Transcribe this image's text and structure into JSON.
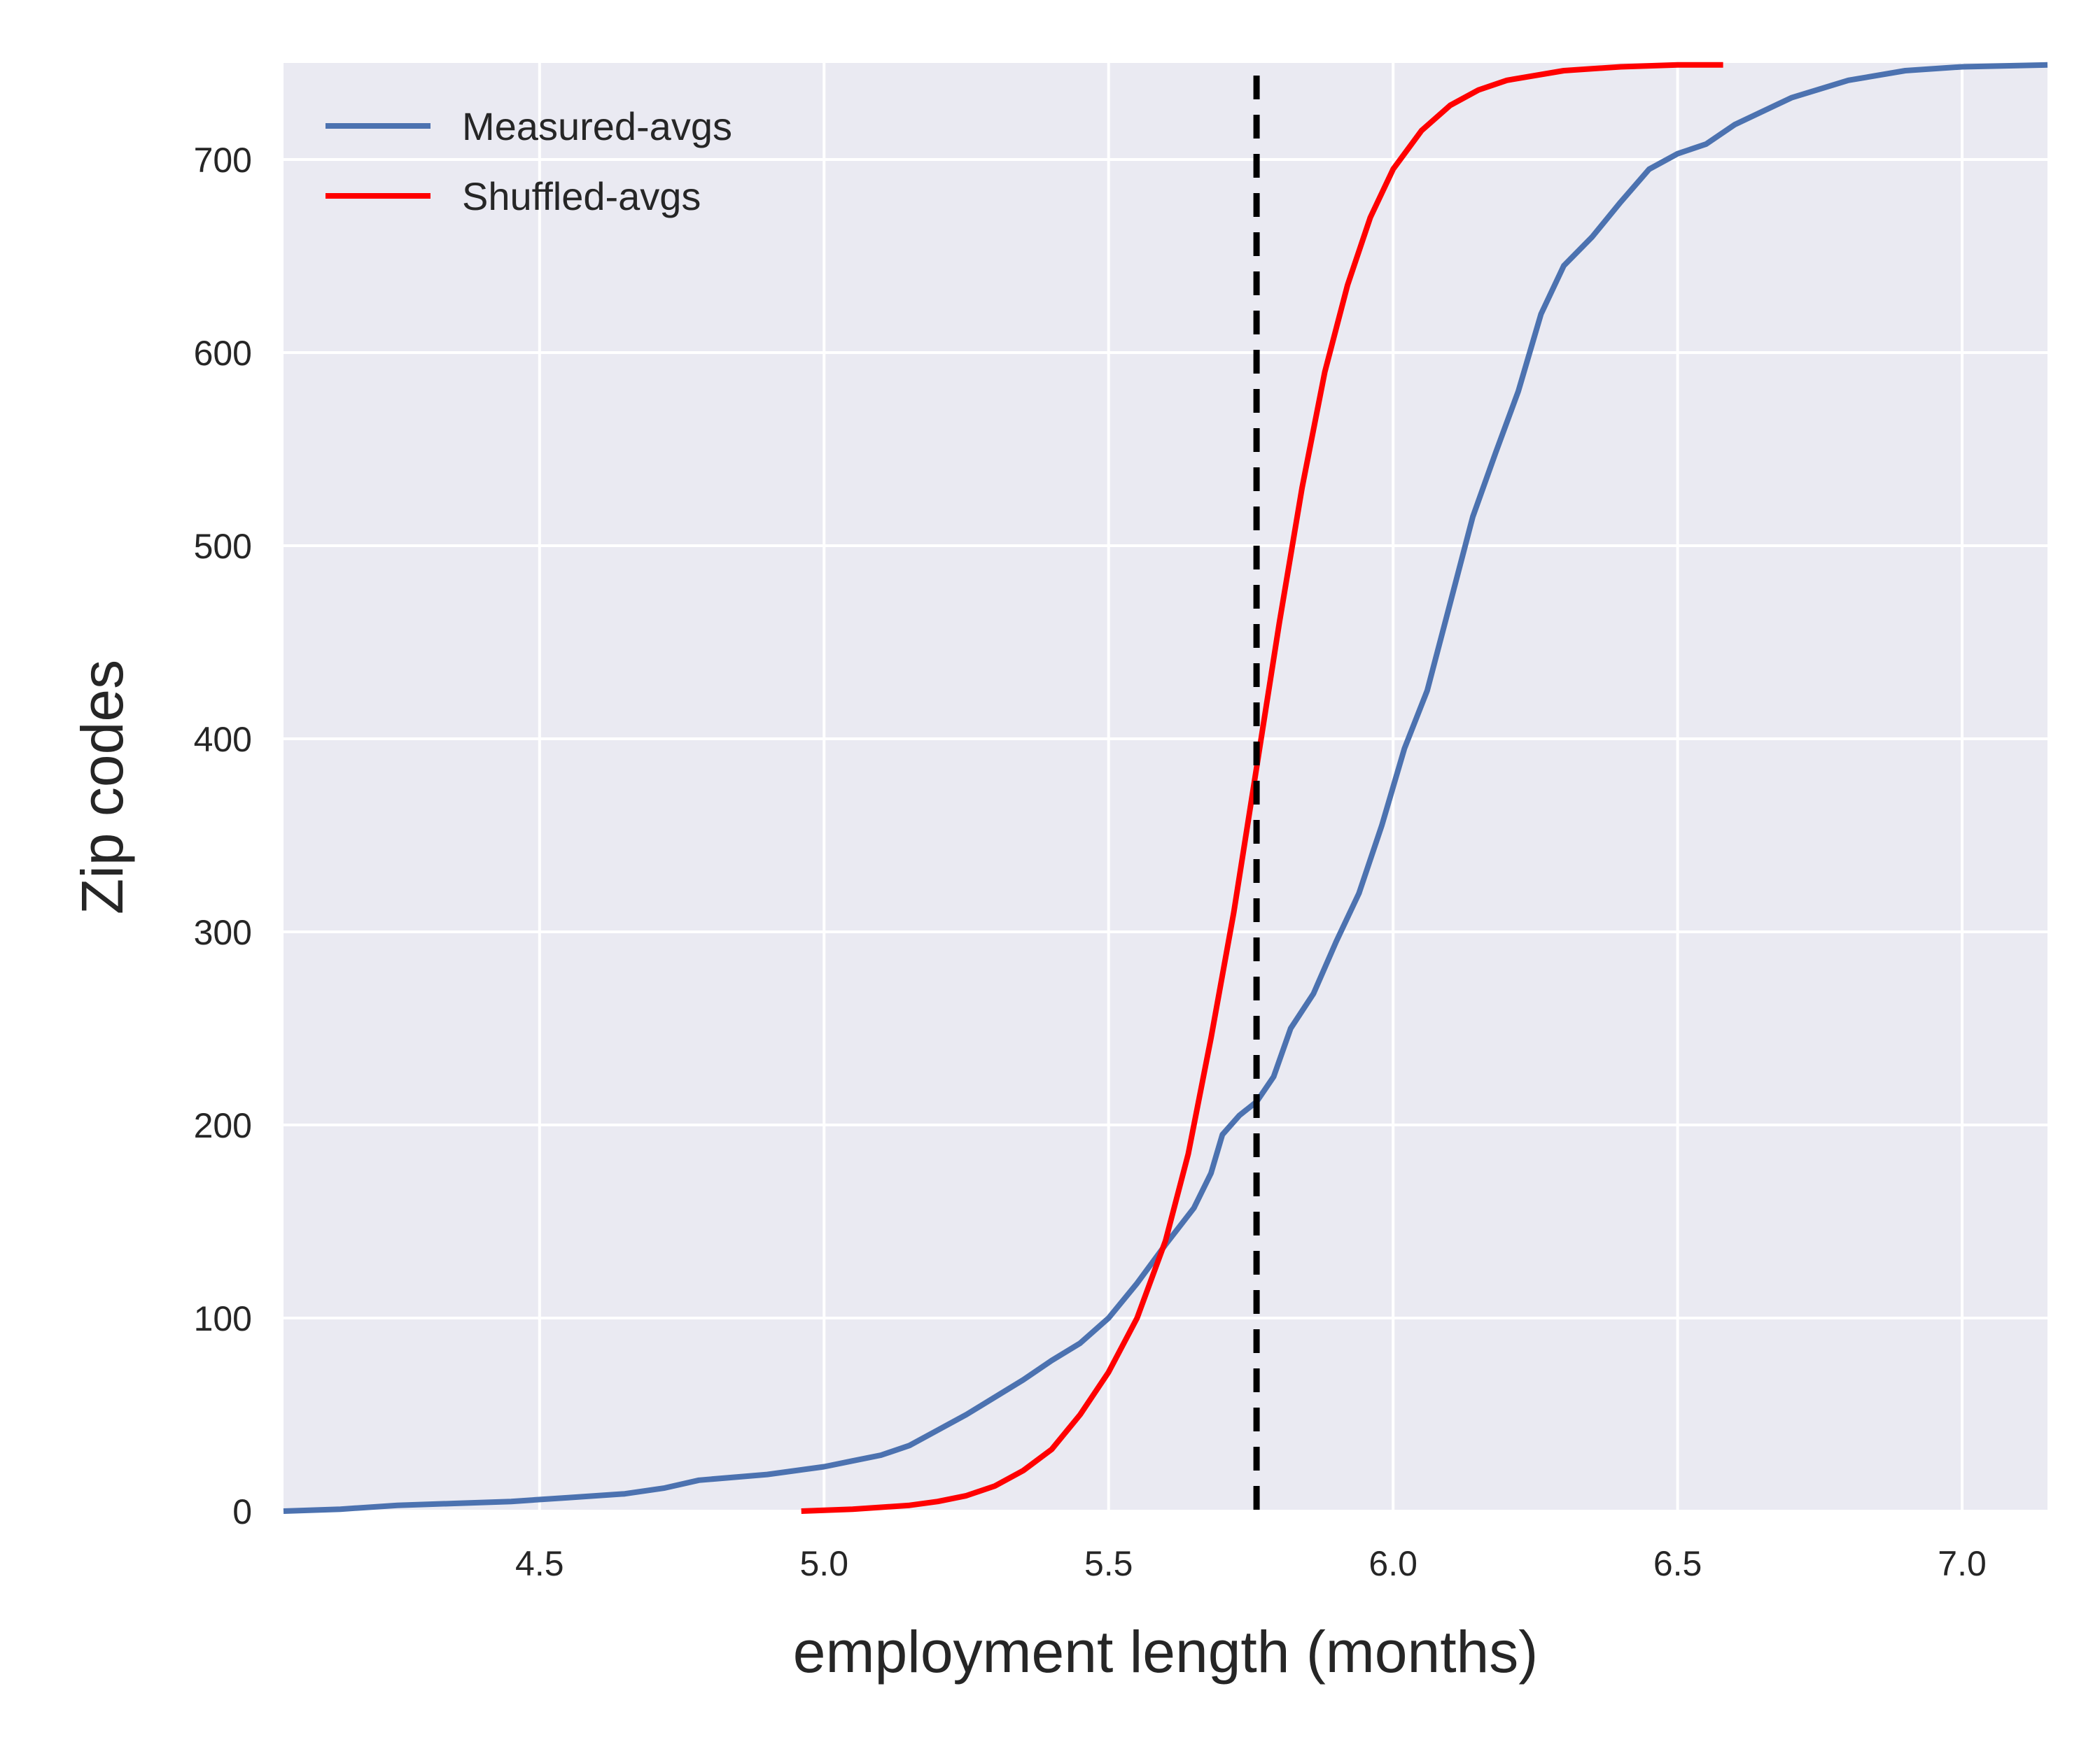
{
  "chart_data": {
    "type": "line",
    "title": "",
    "xlabel": "employment length (months)",
    "ylabel": "Zip codes",
    "xlim": [
      4.05,
      7.15
    ],
    "ylim": [
      0,
      750
    ],
    "xticks": [
      4.5,
      5.0,
      5.5,
      6.0,
      6.5,
      7.0
    ],
    "xtick_labels": [
      "4.5",
      "5.0",
      "5.5",
      "6.0",
      "6.5",
      "7.0"
    ],
    "yticks": [
      0,
      100,
      200,
      300,
      400,
      500,
      600,
      700
    ],
    "ytick_labels": [
      "0",
      "100",
      "200",
      "300",
      "400",
      "500",
      "600",
      "700"
    ],
    "grid": true,
    "legend_position": "top-left",
    "background_color": "#eaeaf2",
    "vline": {
      "x": 5.76,
      "style": "dashed",
      "color": "#000000"
    },
    "series": [
      {
        "name": "Measured-avgs",
        "color": "#4c72b0",
        "points": [
          [
            4.05,
            0
          ],
          [
            4.15,
            1
          ],
          [
            4.25,
            3
          ],
          [
            4.35,
            4
          ],
          [
            4.45,
            5
          ],
          [
            4.55,
            7
          ],
          [
            4.65,
            9
          ],
          [
            4.72,
            12
          ],
          [
            4.78,
            16
          ],
          [
            4.9,
            19
          ],
          [
            5.0,
            23
          ],
          [
            5.05,
            26
          ],
          [
            5.1,
            29
          ],
          [
            5.15,
            34
          ],
          [
            5.2,
            42
          ],
          [
            5.25,
            50
          ],
          [
            5.3,
            59
          ],
          [
            5.35,
            68
          ],
          [
            5.4,
            78
          ],
          [
            5.45,
            87
          ],
          [
            5.5,
            100
          ],
          [
            5.55,
            118
          ],
          [
            5.6,
            138
          ],
          [
            5.65,
            157
          ],
          [
            5.68,
            175
          ],
          [
            5.7,
            195
          ],
          [
            5.73,
            205
          ],
          [
            5.76,
            212
          ],
          [
            5.79,
            225
          ],
          [
            5.82,
            250
          ],
          [
            5.86,
            268
          ],
          [
            5.9,
            295
          ],
          [
            5.94,
            320
          ],
          [
            5.98,
            355
          ],
          [
            6.02,
            395
          ],
          [
            6.06,
            425
          ],
          [
            6.1,
            470
          ],
          [
            6.14,
            515
          ],
          [
            6.18,
            548
          ],
          [
            6.22,
            580
          ],
          [
            6.26,
            620
          ],
          [
            6.3,
            645
          ],
          [
            6.35,
            660
          ],
          [
            6.4,
            678
          ],
          [
            6.45,
            695
          ],
          [
            6.5,
            703
          ],
          [
            6.55,
            708
          ],
          [
            6.6,
            718
          ],
          [
            6.7,
            732
          ],
          [
            6.8,
            741
          ],
          [
            6.9,
            746
          ],
          [
            7.0,
            748
          ],
          [
            7.15,
            749
          ]
        ]
      },
      {
        "name": "Shuffled-avgs",
        "color": "#ff0000",
        "points": [
          [
            4.96,
            0
          ],
          [
            5.05,
            1
          ],
          [
            5.1,
            2
          ],
          [
            5.15,
            3
          ],
          [
            5.2,
            5
          ],
          [
            5.25,
            8
          ],
          [
            5.3,
            13
          ],
          [
            5.35,
            21
          ],
          [
            5.4,
            32
          ],
          [
            5.45,
            50
          ],
          [
            5.5,
            72
          ],
          [
            5.55,
            100
          ],
          [
            5.6,
            140
          ],
          [
            5.64,
            185
          ],
          [
            5.68,
            245
          ],
          [
            5.72,
            310
          ],
          [
            5.76,
            385
          ],
          [
            5.8,
            460
          ],
          [
            5.84,
            530
          ],
          [
            5.88,
            590
          ],
          [
            5.92,
            635
          ],
          [
            5.96,
            670
          ],
          [
            6.0,
            695
          ],
          [
            6.05,
            715
          ],
          [
            6.1,
            728
          ],
          [
            6.15,
            736
          ],
          [
            6.2,
            741
          ],
          [
            6.3,
            746
          ],
          [
            6.4,
            748
          ],
          [
            6.5,
            749
          ],
          [
            6.58,
            749
          ]
        ]
      }
    ]
  }
}
